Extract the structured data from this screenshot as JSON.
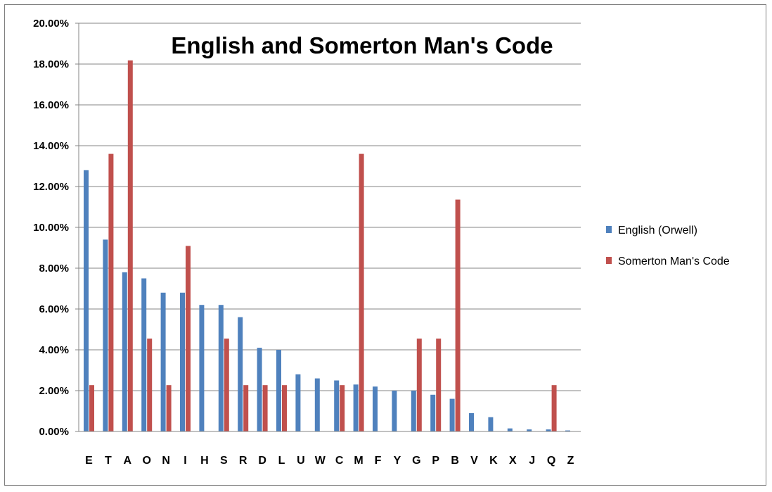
{
  "chart_data": {
    "type": "bar",
    "title": "English and Somerton Man's Code",
    "xlabel": "",
    "ylabel": "",
    "ylim": [
      0,
      0.2
    ],
    "y_tick_values": [
      0,
      0.02,
      0.04,
      0.06,
      0.08,
      0.1,
      0.12,
      0.14,
      0.16,
      0.18,
      0.2
    ],
    "y_tick_labels": [
      "0.00%",
      "2.00%",
      "4.00%",
      "6.00%",
      "8.00%",
      "10.00%",
      "12.00%",
      "14.00%",
      "16.00%",
      "18.00%",
      "20.00%"
    ],
    "grid": true,
    "legend_position": "right",
    "categories": [
      "E",
      "T",
      "A",
      "O",
      "N",
      "I",
      "H",
      "S",
      "R",
      "D",
      "L",
      "U",
      "W",
      "C",
      "M",
      "F",
      "Y",
      "G",
      "P",
      "B",
      "V",
      "K",
      "X",
      "J",
      "Q",
      "Z"
    ],
    "series": [
      {
        "name": "English (Orwell)",
        "color": "#4f81bd",
        "values": [
          0.128,
          0.094,
          0.078,
          0.075,
          0.068,
          0.068,
          0.062,
          0.062,
          0.056,
          0.041,
          0.04,
          0.028,
          0.026,
          0.025,
          0.023,
          0.022,
          0.02,
          0.02,
          0.018,
          0.016,
          0.009,
          0.007,
          0.0015,
          0.001,
          0.001,
          0.0005
        ]
      },
      {
        "name": "Somerton Man's Code",
        "color": "#c0504d",
        "values": [
          0.0227,
          0.136,
          0.1818,
          0.0455,
          0.0227,
          0.0909,
          0,
          0.0455,
          0.0227,
          0.0227,
          0.0227,
          0,
          0,
          0.0227,
          0.136,
          0,
          0,
          0.0455,
          0.0455,
          0.1136,
          0,
          0,
          0,
          0,
          0.0227,
          0
        ]
      }
    ]
  }
}
